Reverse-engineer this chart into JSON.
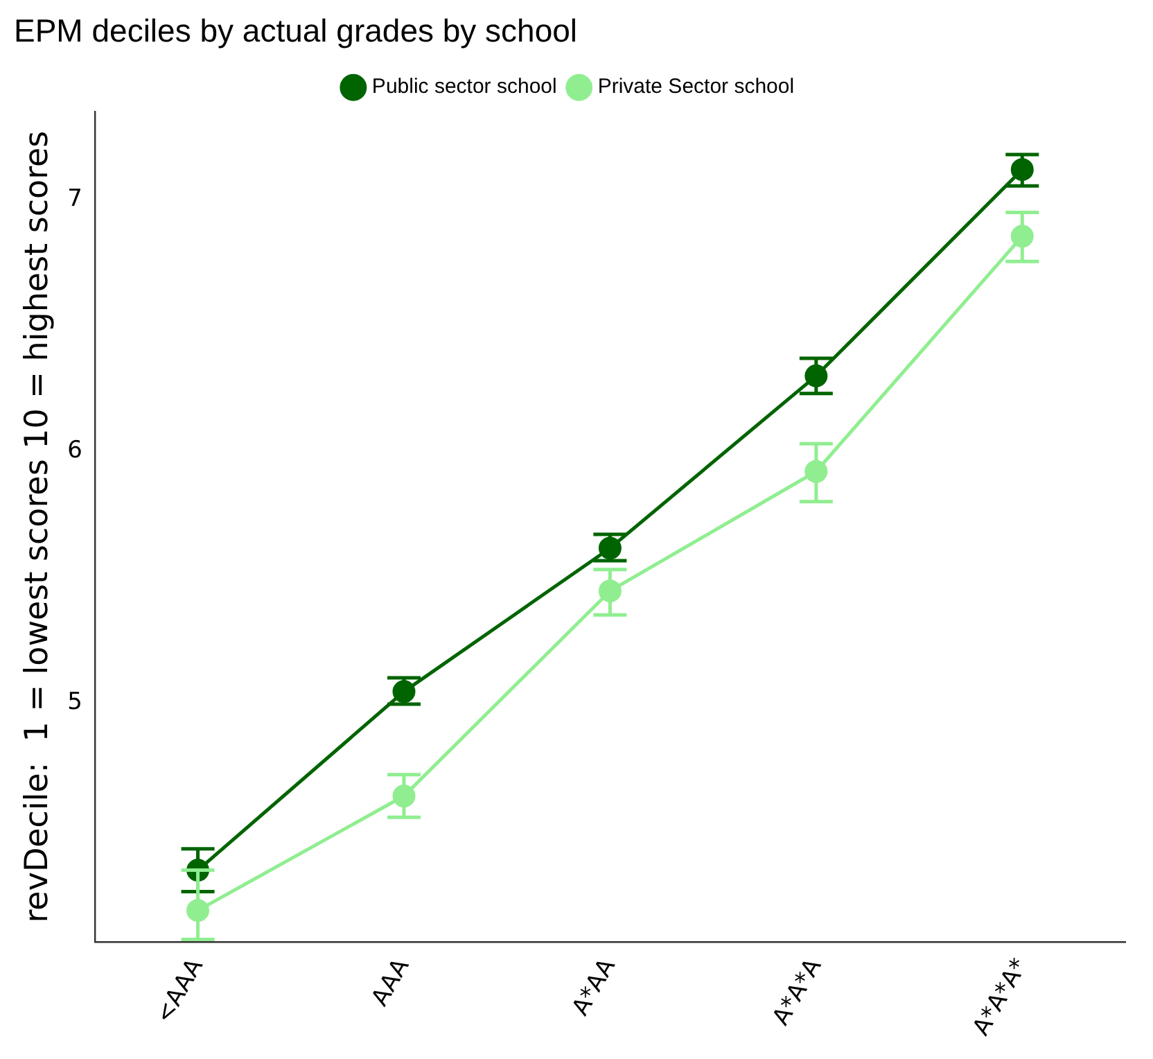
{
  "chart_data": {
    "type": "line",
    "title": "EPM deciles by actual grades by school",
    "ylabel": "revDecile:  1 = lowest scores 10 = highest scores",
    "categories": [
      "<AAA",
      "AAA",
      "A*AA",
      "A*A*A",
      "A*A*A*"
    ],
    "series": [
      {
        "name": "Public sector school",
        "color": "#006400",
        "values": [
          4.335,
          5.045,
          5.615,
          6.3,
          7.12
        ],
        "errors": [
          [
            4.25,
            4.42
          ],
          [
            4.995,
            5.1
          ],
          [
            5.565,
            5.67
          ],
          [
            6.23,
            6.37
          ],
          [
            7.055,
            7.18
          ]
        ]
      },
      {
        "name": "Private Sector school",
        "color": "#90ee90",
        "values": [
          4.175,
          4.63,
          5.445,
          5.92,
          6.855
        ],
        "errors": [
          [
            4.06,
            4.335
          ],
          [
            4.545,
            4.715
          ],
          [
            5.35,
            5.53
          ],
          [
            5.8,
            6.03
          ],
          [
            6.755,
            6.95
          ]
        ]
      }
    ],
    "ylim": [
      4.05,
      7.35
    ],
    "yticks": [
      5,
      6,
      7
    ],
    "grid": false,
    "legend": "top",
    "marker": "circle",
    "line_style": "solid"
  }
}
